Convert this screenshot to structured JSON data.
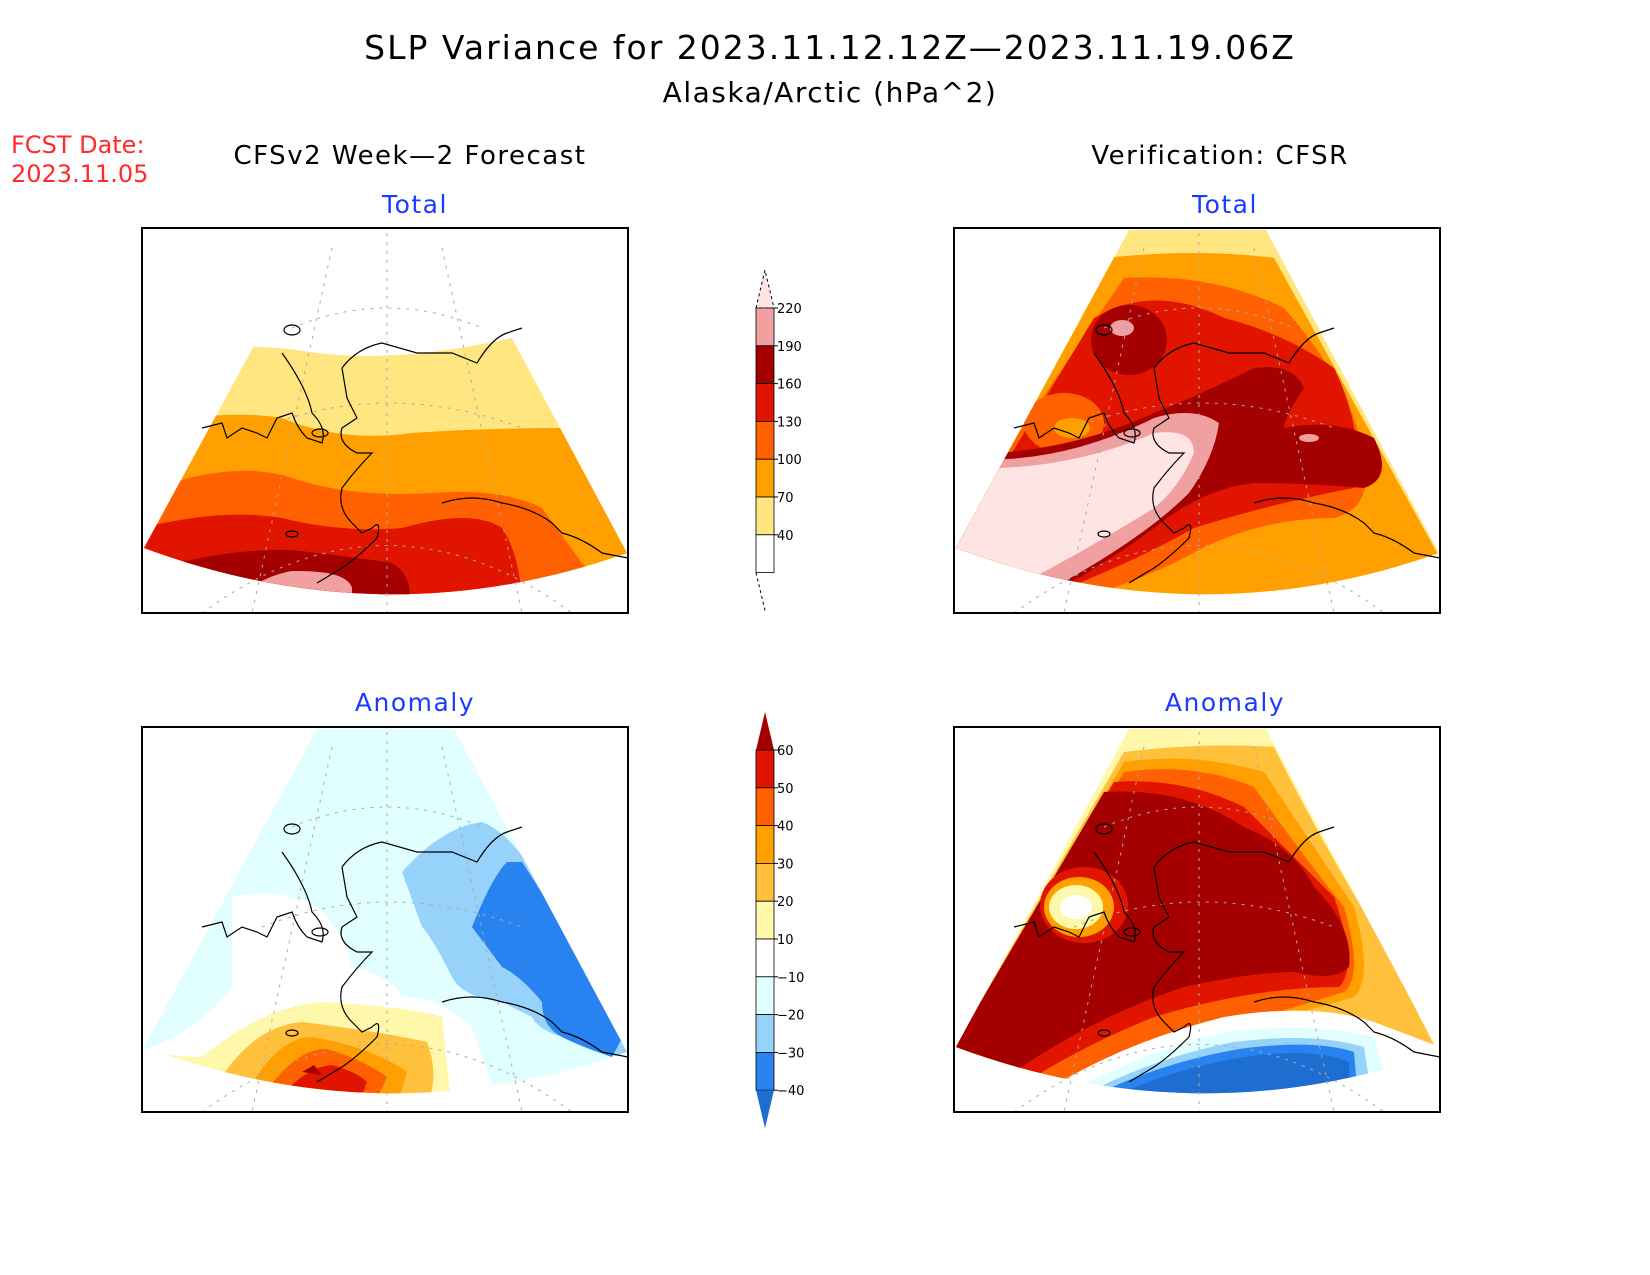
{
  "header": {
    "title": "SLP Variance for 2023.11.12.12Z—2023.11.19.06Z",
    "subtitle": "Alaska/Arctic (hPa^2)",
    "fcst_label": "FCST Date:",
    "fcst_date": "2023.11.05"
  },
  "columns": {
    "left_title": "CFSv2 Week—2 Forecast",
    "right_title": "Verification: CFSR"
  },
  "panels": {
    "top_left": "Total",
    "top_right": "Total",
    "bottom_left": "Anomaly",
    "bottom_right": "Anomaly"
  },
  "colors": {
    "total": [
      "#ffe680",
      "#ffa000",
      "#ff6000",
      "#e11400",
      "#a50000",
      "#f0a0a0",
      "#ffe4e4"
    ],
    "anomaly": [
      "#1e6ed2",
      "#2882f0",
      "#96d2fa",
      "#e1ffff",
      "#ffffff",
      "#fff8aa",
      "#ffc03c",
      "#ffa000",
      "#ff6000",
      "#e11400",
      "#a50000"
    ]
  },
  "chart_data": [
    {
      "type": "heatmap",
      "title": "Total",
      "subtitle": "CFSv2 Week—2 Forecast",
      "units": "hPa^2",
      "description_levels": [
        40,
        70,
        100,
        130,
        160,
        190,
        220
      ],
      "regional_values": {
        "arctic_north": 0,
        "north_alaska": 55,
        "interior": 85,
        "south_interior": 115,
        "gulf_bering": 145,
        "aleutian_core": 175,
        "aleutian_max": 200
      }
    },
    {
      "type": "heatmap",
      "title": "Total",
      "subtitle": "Verification: CFSR",
      "units": "hPa^2",
      "description_levels": [
        40,
        70,
        100,
        130,
        160,
        190,
        220
      ],
      "regional_values": {
        "arctic_north": 60,
        "chukchi": 175,
        "bering_core": 230,
        "gulf_alaska_east": 175,
        "south_pacific": 60
      }
    },
    {
      "type": "heatmap",
      "title": "Anomaly",
      "subtitle": "CFSv2 Week—2 Forecast",
      "units": "hPa^2",
      "description_levels": [
        -40,
        -30,
        -20,
        -10,
        10,
        20,
        30,
        40,
        50,
        60
      ],
      "regional_values": {
        "arctic_north": -15,
        "yukon_canada": -35,
        "western_alaska": 0,
        "aleutian_max": 65
      }
    },
    {
      "type": "heatmap",
      "title": "Anomaly",
      "subtitle": "Verification: CFSR",
      "units": "hPa^2",
      "description_levels": [
        -40,
        -30,
        -20,
        -10,
        10,
        20,
        30,
        40,
        50,
        60
      ],
      "regional_values": {
        "mainland": 65,
        "chukotka_spot": 0,
        "north_pacific": -45
      }
    }
  ],
  "colorbars": {
    "total": {
      "labels": [
        "220",
        "190",
        "160",
        "130",
        "100",
        "70",
        "40"
      ]
    },
    "anomaly": {
      "labels": [
        "60",
        "50",
        "40",
        "30",
        "20",
        "10",
        "−10",
        "−20",
        "−30",
        "−40"
      ]
    }
  }
}
